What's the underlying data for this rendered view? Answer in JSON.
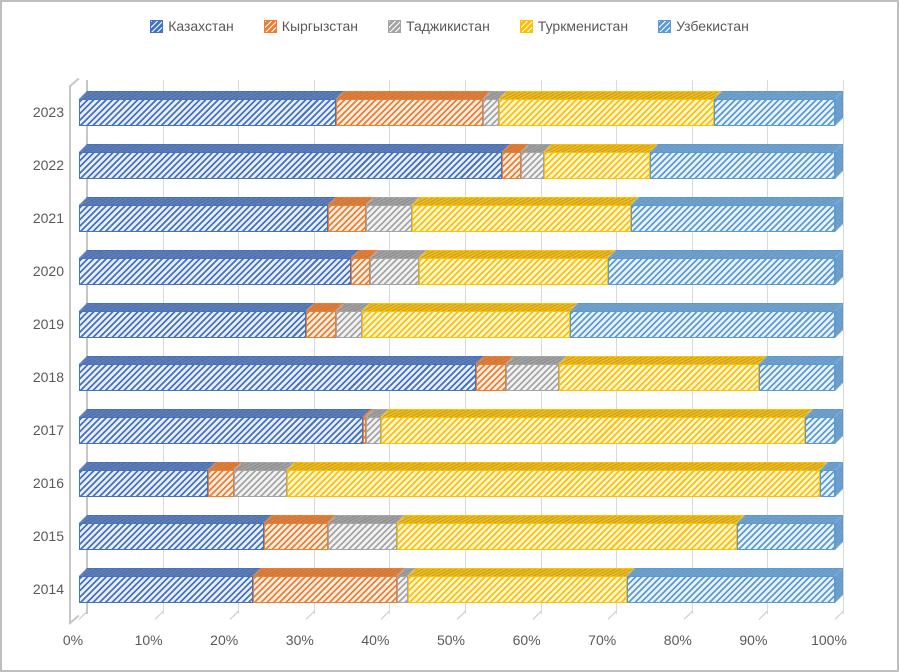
{
  "chart_data": {
    "type": "bar",
    "subtype": "horizontal-100-percent-stacked-3d",
    "title": "",
    "xlabel": "",
    "ylabel": "",
    "legend_position": "top",
    "grid": true,
    "values_unit": "percent of total",
    "categories_top_to_bottom": [
      "2023",
      "2022",
      "2021",
      "2020",
      "2019",
      "2018",
      "2017",
      "2016",
      "2015",
      "2014"
    ],
    "series": [
      {
        "name": "Казахстан",
        "color": "#4472C4",
        "tint": "#E9EEF9",
        "dark": "#6E7F9E",
        "values": [
          34,
          56,
          33,
          36,
          30,
          52.5,
          37.5,
          17,
          24.5,
          23
        ]
      },
      {
        "name": "Кыргызстан",
        "color": "#ED7D31",
        "tint": "#FDEFE4",
        "dark": "#C07A45",
        "values": [
          19.5,
          2.5,
          5,
          2.5,
          4,
          4,
          0.5,
          3.5,
          8.5,
          19
        ]
      },
      {
        "name": "Таджикистан",
        "color": "#A5A5A5",
        "tint": "#F2F2F2",
        "dark": "#8F8F8F",
        "values": [
          2,
          3,
          6,
          6.5,
          3.5,
          7,
          2,
          7,
          9,
          1.5
        ]
      },
      {
        "name": "Туркменистан",
        "color": "#FFC000",
        "tint": "#FFF6DB",
        "dark": "#BFA13F",
        "values": [
          28.5,
          14,
          29,
          25,
          27.5,
          26.5,
          56,
          70.5,
          45,
          29
        ]
      },
      {
        "name": "Узбекистан",
        "color": "#5B9BD5",
        "tint": "#EAF3FB",
        "dark": "#7FA0BC",
        "values": [
          16,
          24.5,
          27,
          30,
          35,
          10,
          4,
          2,
          13,
          27.5
        ]
      }
    ],
    "x_axis": {
      "min": 0,
      "max": 100,
      "tick_step": 10,
      "ticks": [
        "0%",
        "10%",
        "20%",
        "30%",
        "40%",
        "50%",
        "60%",
        "70%",
        "80%",
        "90%",
        "100%"
      ]
    }
  },
  "colors": {
    "background": "#FFFFFF",
    "frame_border": "#BFBFBF",
    "gridline": "#D9D9D9",
    "axis_text": "#595959"
  }
}
